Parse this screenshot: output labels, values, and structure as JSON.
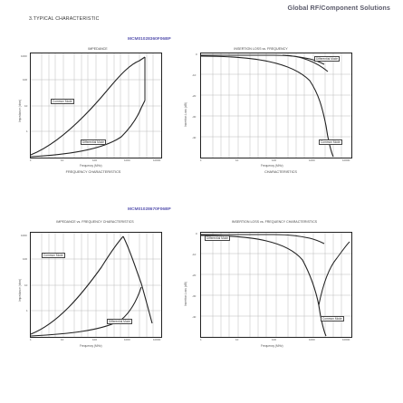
{
  "header": {
    "brand": "Global RF/Component Solutions",
    "section_title": "3.TYPICAL CHARACTERISTIC"
  },
  "parts": [
    {
      "name": "MCM01028360F06BP",
      "left": {
        "title": "IMPEDANCE",
        "caption": "FREQUENCY CHARACTERISTICS",
        "xlabel": "Frequency (MHz)",
        "ylabel": "Impedance (ohm)",
        "labels": [
          "Differential Mode",
          "Common Mode",
          "Differential Mode"
        ]
      },
      "right": {
        "title": "INSERTION LOSS vs. FREQUENCY",
        "caption": "CHARACTERISTICS",
        "xlabel": "Frequency (MHz)",
        "ylabel": "Insertion Loss (dB)",
        "labels": [
          "Differential Mode",
          "Common Mode"
        ]
      }
    },
    {
      "name": "MCM01028670F06BP",
      "left": {
        "title": "IMPEDANCE vs. FREQUENCY CHARACTERISTICS",
        "caption": "",
        "xlabel": "Frequency (MHz)",
        "ylabel": "Impedance (ohm)",
        "labels": [
          "Common Mode",
          "Differential Mode"
        ]
      },
      "right": {
        "title": "INSERTION LOSS vs. FREQUENCY CHARACTERISTICS",
        "caption": "",
        "xlabel": "Frequency (MHz)",
        "ylabel": "Insertion Loss (dB)",
        "labels": [
          "Differential Mode",
          "Common Mode"
        ]
      }
    }
  ],
  "ticks": {
    "freq": [
      "1",
      "10",
      "100",
      "1000",
      "10000"
    ],
    "imp": [
      "1000",
      "100",
      "10",
      "1"
    ],
    "il": [
      "0",
      "-10",
      "-20",
      "-30",
      "-40"
    ]
  }
}
